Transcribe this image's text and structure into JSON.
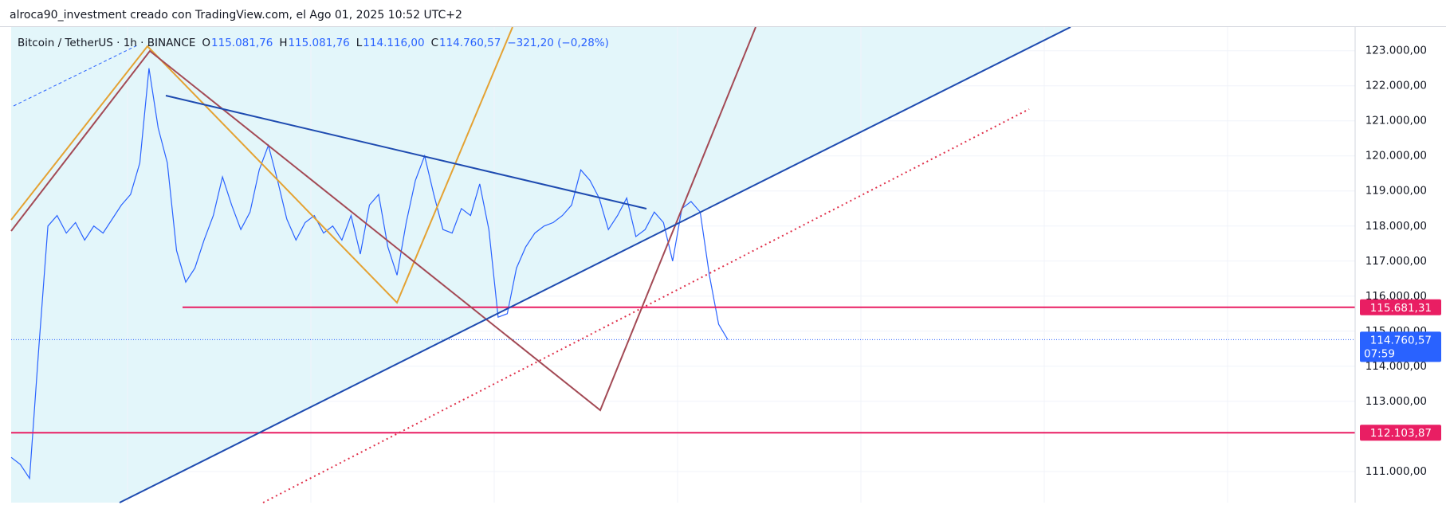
{
  "chart_data": {
    "type": "line",
    "header": "alroca90_investment creado con TradingView.com, el Ago 01, 2025 10:52 UTC+2",
    "symbol": "Bitcoin / TetherUS · 1h · BINANCE",
    "ohlc": [
      {
        "key": "O",
        "value": "115.081,76"
      },
      {
        "key": "H",
        "value": "115.081,76"
      },
      {
        "key": "L",
        "value": "114.116,00"
      },
      {
        "key": "C",
        "value": "114.760,57"
      }
    ],
    "change": "−321,20 (−0,28%)",
    "color": "#2962ff",
    "values": [
      111400,
      111200,
      110800,
      114500,
      118000,
      118300,
      117800,
      118100,
      117600,
      118000,
      117800,
      118200,
      118600,
      118900,
      119800,
      122500,
      120800,
      119800,
      117300,
      116400,
      116800,
      117600,
      118300,
      119400,
      118600,
      117900,
      118400,
      119600,
      120300,
      119300,
      118200,
      117600,
      118100,
      118300,
      117800,
      118000,
      117600,
      118300,
      117200,
      118600,
      118900,
      117400,
      116600,
      118100,
      119300,
      120000,
      118900,
      117900,
      117800,
      118500,
      118300,
      119200,
      117900,
      115400,
      115500,
      116800,
      117400,
      117800,
      118000,
      118100,
      118300,
      118600,
      119600,
      119300,
      118800,
      117900,
      118300,
      118800,
      117700,
      117900,
      118400,
      118100,
      117000,
      118500,
      118700,
      118400,
      116600,
      115200,
      114760.57
    ],
    "value_labels_last": {
      "value": 114760.57,
      "label": "114.760,57",
      "countdown": "07:59"
    },
    "hlines": [
      {
        "value": 115681.31,
        "label": "115.681,31",
        "color": "#e91e63"
      },
      {
        "value": 112103.87,
        "label": "112.103,87",
        "color": "#e91e63"
      }
    ],
    "ylim": [
      110110,
      123675
    ],
    "yticks": [
      {
        "value": 111000,
        "label": "111.000,00"
      },
      {
        "value": 113000,
        "label": "113.000,00"
      },
      {
        "value": 114000,
        "label": "114.000,00"
      },
      {
        "value": 115000,
        "label": "115.000,00"
      },
      {
        "value": 116000,
        "label": "116.000,00"
      },
      {
        "value": 117000,
        "label": "117.000,00"
      },
      {
        "value": 118000,
        "label": "118.000,00"
      },
      {
        "value": 119000,
        "label": "119.000,00"
      },
      {
        "value": 120000,
        "label": "120.000,00"
      },
      {
        "value": 121000,
        "label": "121.000,00"
      },
      {
        "value": 122000,
        "label": "122.000,00"
      },
      {
        "value": 123000,
        "label": "123.000,00"
      }
    ],
    "grid": true
  }
}
